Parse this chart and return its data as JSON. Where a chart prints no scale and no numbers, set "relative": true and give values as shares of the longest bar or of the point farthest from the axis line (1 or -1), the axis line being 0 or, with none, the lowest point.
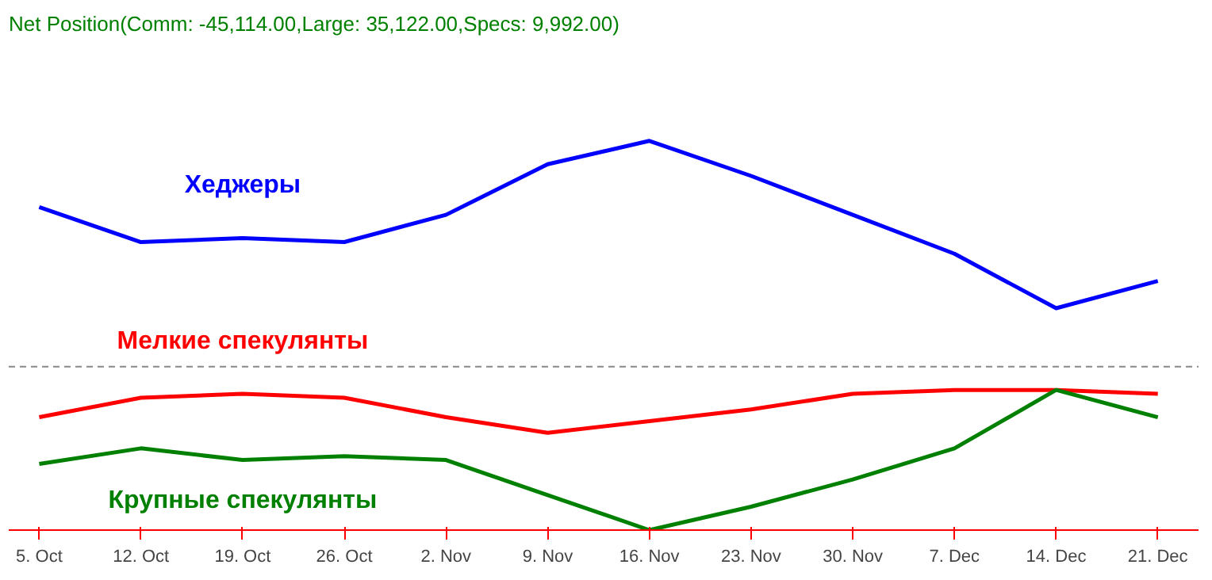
{
  "chart_data": {
    "type": "line",
    "relative": true,
    "title": "Net Position(Comm: -45,114.00,Large: 35,122.00,Specs: 9,992.00)",
    "categories": [
      "5. Oct",
      "12. Oct",
      "19. Oct",
      "26. Oct",
      "2. Nov",
      "9. Nov",
      "16. Nov",
      "23. Nov",
      "30. Nov",
      "7. Dec",
      "14. Dec",
      "21. Dec"
    ],
    "series": [
      {
        "name": "Хеджеры",
        "color": "#0000ff",
        "values": [
          0.83,
          0.74,
          0.75,
          0.74,
          0.81,
          0.94,
          1,
          0.91,
          0.81,
          0.71,
          0.57,
          0.64
        ]
      },
      {
        "name": "Мелкие спекулянты",
        "color": "#ff0000",
        "values": [
          0.29,
          0.34,
          0.35,
          0.34,
          0.29,
          0.25,
          0.28,
          0.31,
          0.35,
          0.36,
          0.36,
          0.35
        ]
      },
      {
        "name": "Крупные спекулянты",
        "color": "#008000",
        "values": [
          0.17,
          0.21,
          0.18,
          0.19,
          0.18,
          0.09,
          0,
          0.06,
          0.13,
          0.21,
          0.36,
          0.29
        ]
      }
    ],
    "ref_lines": [
      {
        "axis": "y",
        "value": 0.42,
        "color": "#888888",
        "line_style": "dashed"
      }
    ],
    "legend": false,
    "marker": "none",
    "line_style": "solid"
  }
}
